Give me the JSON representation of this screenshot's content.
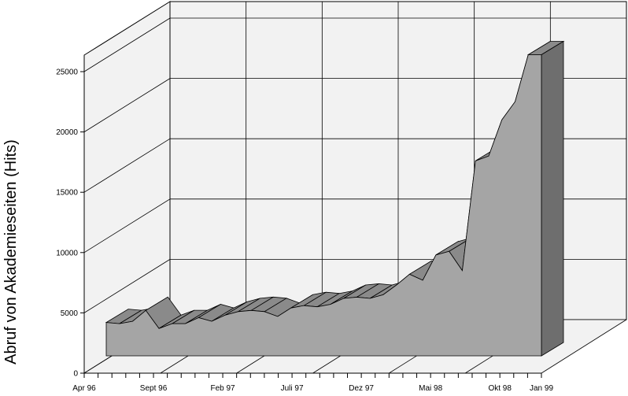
{
  "chart_data": {
    "type": "area",
    "title": "",
    "xlabel": "",
    "ylabel": "Abruf von Akademieseiten (Hits)",
    "ylim": [
      0,
      25000
    ],
    "yticks": [
      0,
      5000,
      10000,
      15000,
      20000,
      25000
    ],
    "ytick_labels": [
      "0",
      "5000",
      "10000",
      "15000",
      "20000",
      "25000"
    ],
    "x_tick_labels": [
      {
        "index": 0,
        "label": "Apr 96"
      },
      {
        "index": 5,
        "label": "Sept 96"
      },
      {
        "index": 10,
        "label": "Feb 97"
      },
      {
        "index": 15,
        "label": "Juli 97"
      },
      {
        "index": 20,
        "label": "Dez 97"
      },
      {
        "index": 25,
        "label": "Mai 98"
      },
      {
        "index": 30,
        "label": "Okt 98"
      },
      {
        "index": 33,
        "label": "Jan 99"
      }
    ],
    "x_count": 34,
    "series": [
      {
        "values": [
          1200,
          1100,
          1300,
          2200,
          700,
          1100,
          1100,
          1600,
          1300,
          1800,
          2100,
          2200,
          2100,
          1700,
          2400,
          2600,
          2500,
          2700,
          3200,
          3300,
          3200,
          3500,
          4300,
          5200,
          4700,
          6800,
          7100,
          5500,
          14600,
          15000,
          18000,
          19500,
          23400,
          23400
        ]
      }
    ],
    "grid": true,
    "projection": "3d",
    "colors": {
      "front_face": "#a5a5a5",
      "top_face": "#8a8a8a",
      "end_face": "#6e6e6e",
      "wall": "#f2f2f2",
      "grid": "#000000"
    }
  }
}
